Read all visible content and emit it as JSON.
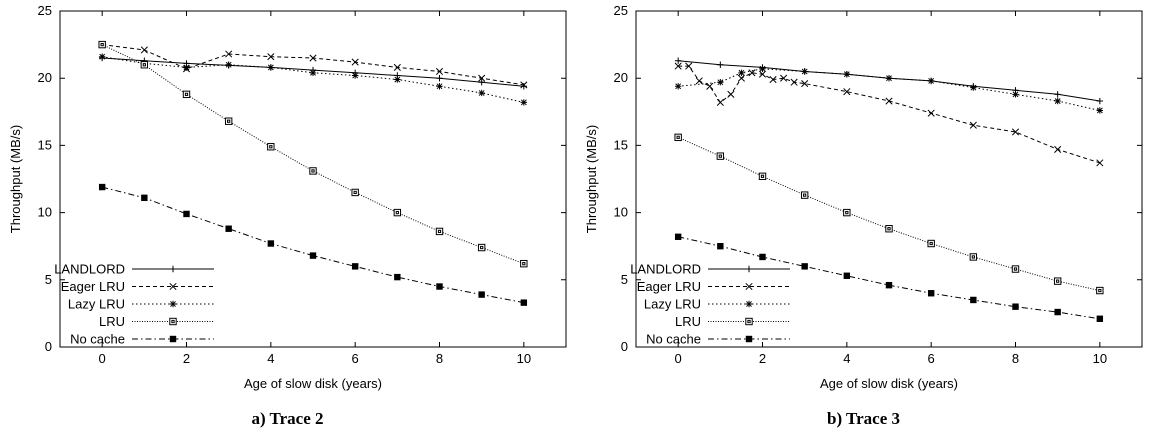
{
  "chart_data": [
    {
      "type": "line",
      "caption": "a) Trace 2",
      "xlabel": "Age of slow disk (years)",
      "ylabel": "Throughput (MB/s)",
      "xlim": [
        -1,
        11
      ],
      "ylim": [
        0,
        25
      ],
      "xticks": [
        0,
        2,
        4,
        6,
        8,
        10
      ],
      "yticks": [
        0,
        5,
        10,
        15,
        20,
        25
      ],
      "grid": false,
      "legend_position": "bottom-left",
      "series": [
        {
          "name": "LANDLORD",
          "marker": "plus",
          "dash": "",
          "x": [
            0,
            1,
            2,
            3,
            4,
            5,
            6,
            7,
            8,
            9,
            10
          ],
          "y": [
            21.5,
            21.3,
            21.1,
            20.95,
            20.8,
            20.6,
            20.4,
            20.2,
            20.0,
            19.7,
            19.4
          ]
        },
        {
          "name": "Eager LRU",
          "marker": "cross",
          "dash": "4,3",
          "x": [
            0,
            1,
            2,
            3,
            4,
            5,
            6,
            7,
            8,
            9,
            10
          ],
          "y": [
            22.5,
            22.1,
            20.7,
            21.8,
            21.6,
            21.5,
            21.2,
            20.8,
            20.5,
            20.0,
            19.5
          ]
        },
        {
          "name": "Lazy LRU",
          "marker": "star",
          "dash": "1.5,2.5",
          "x": [
            0,
            1,
            2,
            3,
            4,
            5,
            6,
            7,
            8,
            9,
            10
          ],
          "y": [
            21.6,
            21.1,
            20.8,
            21.0,
            20.8,
            20.4,
            20.2,
            19.9,
            19.4,
            18.9,
            18.2
          ]
        },
        {
          "name": "LRU",
          "marker": "square-open",
          "dash": "1,1.5",
          "x": [
            0,
            1,
            2,
            3,
            4,
            5,
            6,
            7,
            8,
            9,
            10
          ],
          "y": [
            22.5,
            21.0,
            18.8,
            16.8,
            14.9,
            13.1,
            11.5,
            10.0,
            8.6,
            7.4,
            6.2
          ]
        },
        {
          "name": "No cache",
          "marker": "square-filled",
          "dash": "6,3,1.5,3",
          "x": [
            0,
            1,
            2,
            3,
            4,
            5,
            6,
            7,
            8,
            9,
            10
          ],
          "y": [
            11.9,
            11.1,
            9.9,
            8.8,
            7.7,
            6.8,
            6.0,
            5.2,
            4.5,
            3.9,
            3.3
          ]
        }
      ]
    },
    {
      "type": "line",
      "caption": "b) Trace 3",
      "xlabel": "Age of slow disk (years)",
      "ylabel": "Throughput (MB/s)",
      "xlim": [
        -1,
        11
      ],
      "ylim": [
        0,
        25
      ],
      "xticks": [
        0,
        2,
        4,
        6,
        8,
        10
      ],
      "yticks": [
        0,
        5,
        10,
        15,
        20,
        25
      ],
      "grid": false,
      "legend_position": "bottom-left",
      "series": [
        {
          "name": "LANDLORD",
          "marker": "plus",
          "dash": "",
          "x": [
            0,
            1,
            2,
            3,
            4,
            5,
            6,
            7,
            8,
            9,
            10
          ],
          "y": [
            21.3,
            21.0,
            20.8,
            20.5,
            20.3,
            20.0,
            19.8,
            19.4,
            19.1,
            18.8,
            18.3
          ]
        },
        {
          "name": "Eager LRU",
          "marker": "cross",
          "dash": "4,3",
          "x": [
            0,
            0.25,
            0.5,
            0.75,
            1,
            1.25,
            1.5,
            1.75,
            2,
            2.25,
            2.5,
            2.75,
            3,
            4,
            5,
            6,
            7,
            8,
            9,
            10
          ],
          "y": [
            20.9,
            20.9,
            19.8,
            19.4,
            18.2,
            18.8,
            20.0,
            20.4,
            20.3,
            19.9,
            20.0,
            19.7,
            19.6,
            19.0,
            18.3,
            17.4,
            16.5,
            16.0,
            14.7,
            13.7
          ]
        },
        {
          "name": "Lazy LRU",
          "marker": "star",
          "dash": "1.5,2.5",
          "x": [
            0,
            1,
            1.5,
            2,
            3,
            4,
            5,
            6,
            7,
            8,
            9,
            10
          ],
          "y": [
            19.4,
            19.7,
            20.4,
            20.7,
            20.5,
            20.3,
            20.0,
            19.8,
            19.3,
            18.8,
            18.3,
            17.6
          ]
        },
        {
          "name": "LRU",
          "marker": "square-open",
          "dash": "1,1.5",
          "x": [
            0,
            1,
            2,
            3,
            4,
            5,
            6,
            7,
            8,
            9,
            10
          ],
          "y": [
            15.6,
            14.2,
            12.7,
            11.3,
            10.0,
            8.8,
            7.7,
            6.7,
            5.8,
            4.9,
            4.2
          ]
        },
        {
          "name": "No cache",
          "marker": "square-filled",
          "dash": "6,3,1.5,3",
          "x": [
            0,
            1,
            2,
            3,
            4,
            5,
            6,
            7,
            8,
            9,
            10
          ],
          "y": [
            8.2,
            7.5,
            6.7,
            6.0,
            5.3,
            4.6,
            4.0,
            3.5,
            3.0,
            2.6,
            2.1
          ]
        }
      ]
    }
  ]
}
